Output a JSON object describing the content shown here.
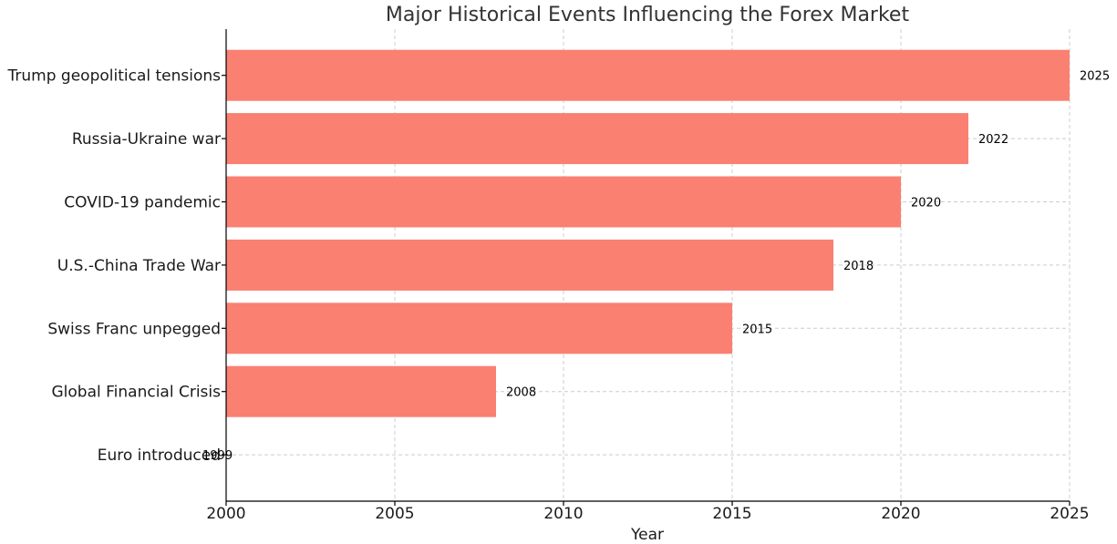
{
  "chart_data": {
    "type": "bar",
    "orientation": "horizontal",
    "title": "Major Historical Events Influencing the Forex Market",
    "xlabel": "Year",
    "ylabel": "",
    "xlim": [
      2000,
      2025
    ],
    "xticks": [
      "2000",
      "2005",
      "2010",
      "2015",
      "2020",
      "2025"
    ],
    "grid": true,
    "bar_color": "#fa8072",
    "categories": [
      "Trump geopolitical tensions",
      "Russia-Ukraine war",
      "COVID-19 pandemic",
      "U.S.-China Trade War",
      "Swiss Franc unpegged",
      "Global Financial Crisis",
      "Euro introduced"
    ],
    "values": [
      2025,
      2022,
      2020,
      2018,
      2015,
      2008,
      1999
    ],
    "data_labels": [
      "2025",
      "2022",
      "2020",
      "2018",
      "2015",
      "2008",
      "1999"
    ]
  }
}
